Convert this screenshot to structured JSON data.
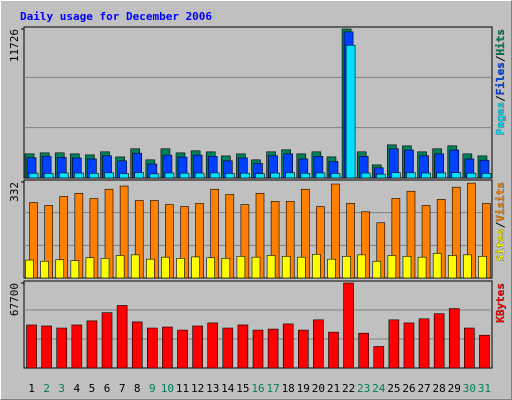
{
  "chart_data": [
    {
      "type": "bar",
      "title": "Daily usage for December 2006",
      "separator": "/",
      "ylim": [
        0,
        11726
      ],
      "yticks": [
        11726
      ],
      "series": [
        {
          "name": "Hits",
          "color": "#00805c",
          "values": [
            1900,
            1980,
            1980,
            1900,
            1820,
            2060,
            1660,
            2300,
            1430,
            2300,
            1980,
            2140,
            2060,
            1740,
            1900,
            1430,
            2060,
            2220,
            1900,
            2060,
            1660,
            11726,
            2060,
            1030,
            2610,
            2530,
            2060,
            2300,
            2530,
            1900,
            1740
          ]
        },
        {
          "name": "Files",
          "color": "#0040ff",
          "values": [
            1600,
            1700,
            1620,
            1580,
            1500,
            1750,
            1350,
            1950,
            1100,
            1800,
            1650,
            1800,
            1700,
            1350,
            1580,
            1150,
            1750,
            1900,
            1500,
            1700,
            1300,
            11500,
            1700,
            800,
            2300,
            2200,
            1750,
            1900,
            2200,
            1500,
            1400
          ]
        },
        {
          "name": "Pages",
          "color": "#00e0ff",
          "values": [
            380,
            360,
            400,
            390,
            370,
            410,
            350,
            420,
            330,
            400,
            380,
            390,
            400,
            360,
            380,
            340,
            390,
            410,
            370,
            400,
            350,
            10450,
            390,
            300,
            420,
            410,
            390,
            400,
            420,
            380,
            360
          ]
        }
      ]
    },
    {
      "type": "bar",
      "separator": "/",
      "ylim": [
        0,
        332
      ],
      "yticks": [
        332
      ],
      "series": [
        {
          "name": "Visits",
          "color": "#ff8000",
          "values": [
            261,
            251,
            282,
            293,
            275,
            307,
            318,
            268,
            268,
            254,
            247,
            258,
            307,
            289,
            254,
            293,
            265,
            265,
            307,
            247,
            325,
            258,
            229,
            191,
            275,
            300,
            251,
            272,
            314,
            328,
            258
          ]
        },
        {
          "name": "Sites",
          "color": "#ffff00",
          "values": [
            62,
            58,
            63,
            60,
            70,
            68,
            78,
            80,
            65,
            72,
            68,
            73,
            70,
            68,
            75,
            72,
            78,
            75,
            72,
            82,
            65,
            75,
            80,
            58,
            78,
            75,
            72,
            85,
            78,
            80,
            75
          ]
        }
      ]
    },
    {
      "type": "bar",
      "ylim": [
        0,
        67700
      ],
      "yticks": [
        67700
      ],
      "series": [
        {
          "name": "KBytes",
          "color": "#ff0000",
          "values": [
            34270,
            33460,
            31820,
            34270,
            37540,
            44060,
            49780,
            36720,
            31820,
            32640,
            30190,
            33460,
            35900,
            31820,
            34270,
            30190,
            31010,
            35090,
            30190,
            38350,
            28560,
            67700,
            27740,
            17130,
            38350,
            35900,
            39170,
            43240,
            47330,
            31820,
            26110
          ]
        }
      ],
      "categories": [
        "1",
        "2",
        "3",
        "4",
        "5",
        "6",
        "7",
        "8",
        "9",
        "10",
        "11",
        "12",
        "13",
        "14",
        "15",
        "16",
        "17",
        "18",
        "19",
        "20",
        "21",
        "22",
        "23",
        "24",
        "25",
        "26",
        "27",
        "28",
        "29",
        "30",
        "31"
      ],
      "category_colors": [
        "#000000",
        "#00805c",
        "#00805c",
        "#000000",
        "#000000",
        "#000000",
        "#000000",
        "#000000",
        "#00805c",
        "#00805c",
        "#000000",
        "#000000",
        "#000000",
        "#000000",
        "#000000",
        "#00805c",
        "#00805c",
        "#000000",
        "#000000",
        "#000000",
        "#000000",
        "#000000",
        "#00805c",
        "#00805c",
        "#000000",
        "#000000",
        "#000000",
        "#000000",
        "#000000",
        "#00805c",
        "#00805c"
      ]
    }
  ]
}
